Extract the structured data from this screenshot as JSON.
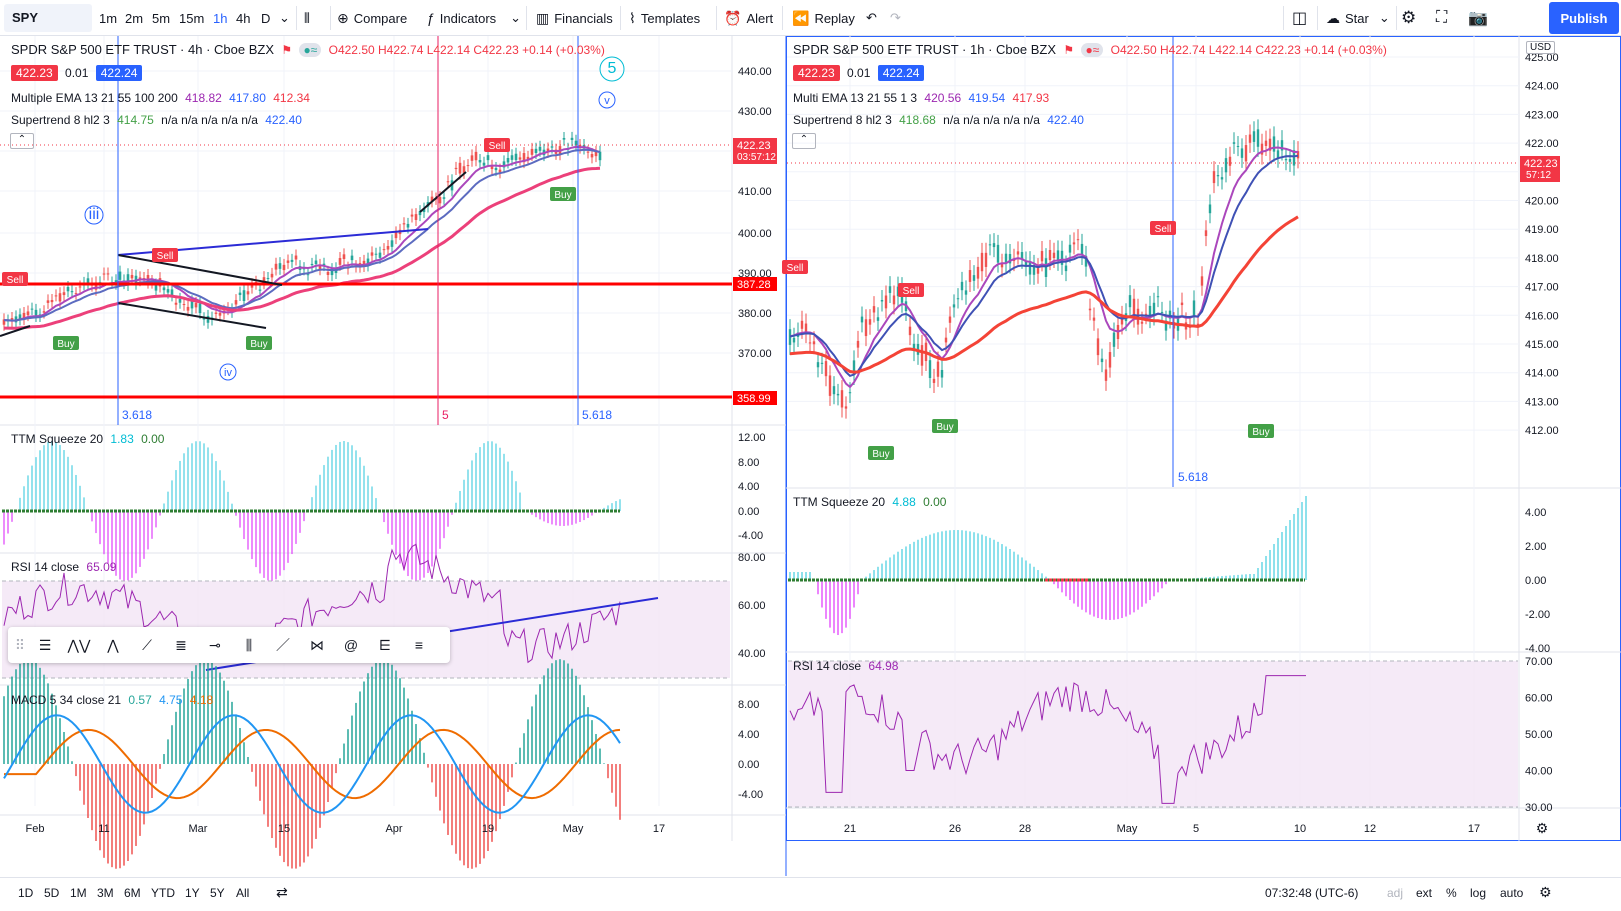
{
  "toolbar": {
    "symbol": "SPY",
    "timeframes": [
      "1m",
      "2m",
      "5m",
      "15m",
      "1h",
      "4h",
      "D"
    ],
    "active_timeframe": "1h",
    "compare": "Compare",
    "indicators": "Indicators",
    "financials": "Financials",
    "templates": "Templates",
    "alert": "Alert",
    "replay": "Replay",
    "star": "Star",
    "publish": "Publish"
  },
  "left_chart": {
    "title": "SPDR S&P 500 ETF TRUST · 4h · Cboe BZX",
    "ohlc": "O422.50 H422.74 L422.14 C422.23 +0.14 (+0.03%)",
    "bid": "422.23",
    "spread": "0.01",
    "ask": "422.24",
    "ema_label": "Multiple EMA 13 21 55 100 200",
    "ema_values": [
      "418.82",
      "417.80",
      "412.34"
    ],
    "supertrend_label": "Supertrend 8 hl2 3",
    "supertrend_values": [
      "414.75",
      "n/a n/a n/a n/a n/a",
      "422.40"
    ],
    "price_axis": [
      "440.00",
      "430.00",
      "420.00",
      "410.00",
      "400.00",
      "390.00",
      "380.00",
      "370.00"
    ],
    "last_price": "422.23",
    "countdown": "03:57:12",
    "line_387": "387.28",
    "line_358": "358.99",
    "fib_labels": [
      "3.618",
      "5",
      "5.618"
    ],
    "ttm": {
      "label": "TTM Squeeze 20",
      "v1": "1.83",
      "v2": "0.00",
      "axis": [
        "12.00",
        "8.00",
        "4.00",
        "0.00",
        "-4.00"
      ]
    },
    "rsi": {
      "label": "RSI 14 close",
      "v": "65.09",
      "axis": [
        "80.00",
        "60.00",
        "40.00"
      ]
    },
    "macd": {
      "label": "MACD 5 34 close 21",
      "v1": "0.57",
      "v2": "4.75",
      "v3": "4.18",
      "axis": [
        "8.00",
        "4.00",
        "0.00",
        "-4.00"
      ]
    },
    "time_axis": [
      "Feb",
      "11",
      "Mar",
      "15",
      "Apr",
      "19",
      "May",
      "17"
    ],
    "wave_labels": [
      "5",
      "v",
      "iii",
      "iv"
    ]
  },
  "right_chart": {
    "title": "SPDR S&P 500 ETF TRUST · 1h · Cboe BZX",
    "ohlc": "O422.50 H422.74 L422.14 C422.23 +0.14 (+0.03%)",
    "bid": "422.23",
    "spread": "0.01",
    "ask": "422.24",
    "ema_label": "Multi EMA 13 21 55 1 3",
    "ema_values": [
      "420.56",
      "419.54",
      "417.93"
    ],
    "supertrend_label": "Supertrend 8 hl2 3",
    "supertrend_values": [
      "418.68",
      "n/a n/a n/a n/a n/a",
      "422.40"
    ],
    "currency": "USD",
    "price_axis": [
      "425.00",
      "424.00",
      "423.00",
      "422.00",
      "421.00",
      "420.00",
      "419.00",
      "418.00",
      "417.00",
      "416.00",
      "415.00",
      "414.00",
      "413.00",
      "412.00"
    ],
    "last_price": "422.23",
    "countdown": "57:12",
    "fib_label": "5.618",
    "ttm": {
      "label": "TTM Squeeze 20",
      "v1": "4.88",
      "v2": "0.00",
      "axis": [
        "4.00",
        "2.00",
        "0.00",
        "-2.00",
        "-4.00"
      ]
    },
    "rsi": {
      "label": "RSI 14 close",
      "v": "64.98",
      "axis": [
        "70.00",
        "60.00",
        "50.00",
        "40.00",
        "30.00"
      ]
    },
    "time_axis": [
      "21",
      "26",
      "28",
      "May",
      "5",
      "10",
      "12",
      "17"
    ]
  },
  "signals": {
    "sell": "Sell",
    "buy": "Buy"
  },
  "bottom": {
    "ranges": [
      "1D",
      "5D",
      "1M",
      "3M",
      "6M",
      "YTD",
      "1Y",
      "5Y",
      "All"
    ],
    "clock": "07:32:48 (UTC-6)",
    "adj": "adj",
    "ext": "ext",
    "pct": "%",
    "log": "log",
    "auto": "auto"
  }
}
